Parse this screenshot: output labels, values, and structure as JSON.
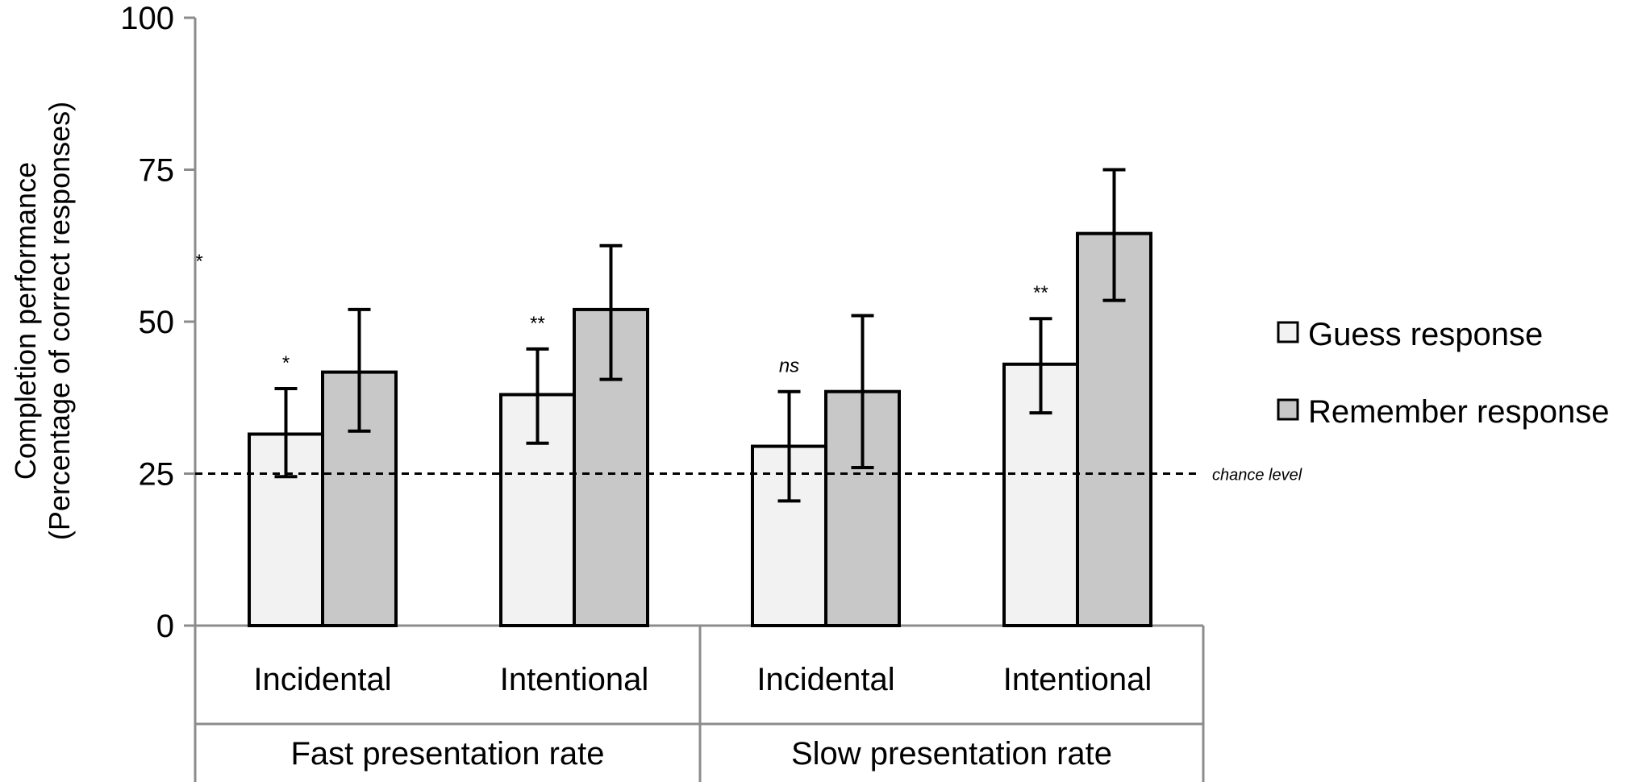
{
  "chart_data": {
    "type": "bar",
    "title": "",
    "xlabel": "",
    "ylabel": [
      "Completion performance",
      "(Percentage of correct responses)"
    ],
    "ylim": [
      0,
      100
    ],
    "yticks": [
      "0",
      "25",
      "50",
      "75",
      "100"
    ],
    "ytick_values": [
      0,
      25,
      50,
      75,
      100
    ],
    "groups": [
      {
        "name": "Fast presentation rate",
        "categories": [
          "Incidental",
          "Intentional"
        ]
      },
      {
        "name": "Slow presentation rate",
        "categories": [
          "Incidental",
          "Intentional"
        ]
      }
    ],
    "categories": [
      "Incidental",
      "Intentional",
      "Incidental",
      "Intentional"
    ],
    "series": [
      {
        "name": "Guess response",
        "color": "#f2f2f2",
        "values": [
          31.5,
          38,
          29.5,
          43
        ],
        "error_low": [
          24.5,
          30,
          20.5,
          35
        ],
        "error_high": [
          39,
          45.5,
          38.5,
          50.5
        ]
      },
      {
        "name": "Remember response",
        "color": "#c8c8c8",
        "values": [
          41.7,
          52,
          38.5,
          64.5
        ],
        "error_low": [
          32,
          40.5,
          26,
          53.5
        ],
        "error_high": [
          52,
          62.5,
          51,
          75
        ]
      }
    ],
    "significance": [
      "*",
      "**",
      "ns",
      "**"
    ],
    "stray_marker": "*",
    "reference_line": {
      "value": 25,
      "label": "chance level",
      "style": "dashed"
    },
    "legend": {
      "position": "right",
      "entries": [
        "Guess response",
        "Remember response"
      ]
    },
    "grid": false
  }
}
